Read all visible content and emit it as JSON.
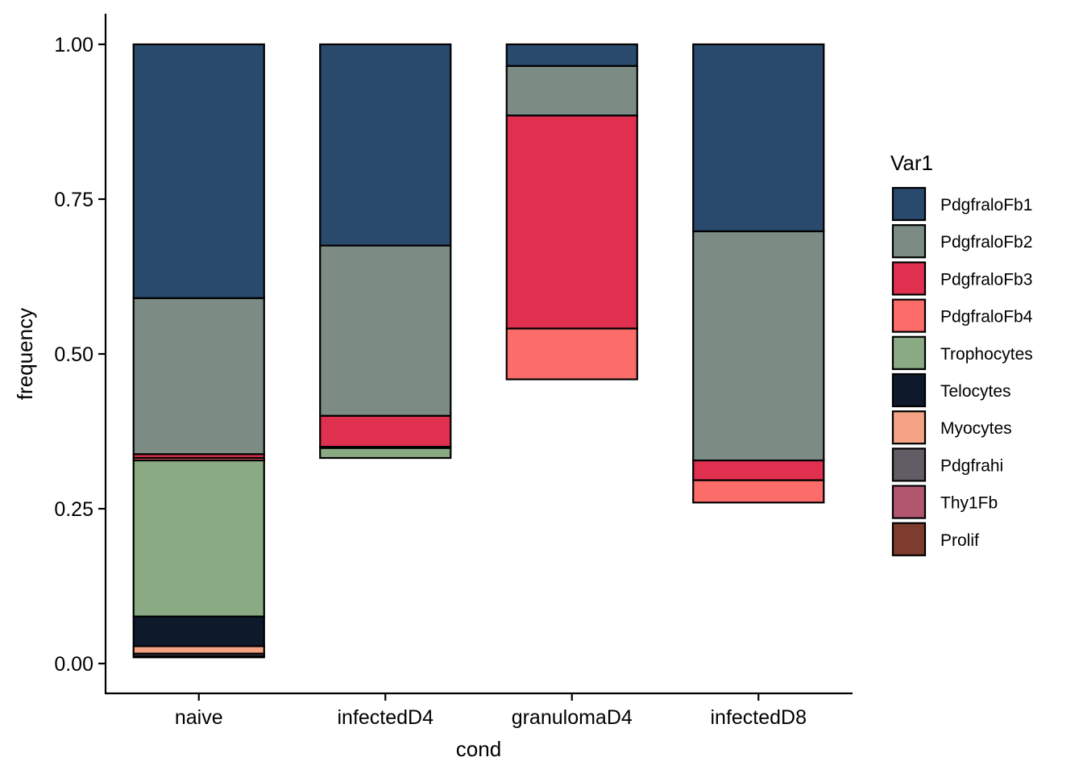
{
  "chart_data": {
    "type": "bar",
    "stacked": true,
    "xlabel": "cond",
    "ylabel": "frequency",
    "ylim": [
      0,
      1
    ],
    "y_ticks": [
      "0.00",
      "0.25",
      "0.50",
      "0.75",
      "1.00"
    ],
    "y_tick_values": [
      0,
      0.25,
      0.5,
      0.75,
      1.0
    ],
    "categories": [
      "naive",
      "infectedD4",
      "granulomaD4",
      "infectedD8"
    ],
    "legend": {
      "title": "Var1",
      "placement": "right"
    },
    "series": [
      {
        "name": "PdgfraloFb1",
        "color": "#2A4A6D",
        "values": [
          0.41,
          0.325,
          0.035,
          0.302
        ]
      },
      {
        "name": "PdgfraloFb2",
        "color": "#7C8C84",
        "values": [
          0.252,
          0.275,
          0.08,
          0.37
        ]
      },
      {
        "name": "PdgfraloFb3",
        "color": "#E0304F",
        "values": [
          0.006,
          0.05,
          0.344,
          0.032
        ]
      },
      {
        "name": "PdgfraloFb4",
        "color": "#FC6C69",
        "values": [
          0.004,
          0.002,
          0.082,
          0.036
        ]
      },
      {
        "name": "Trophocytes",
        "color": "#8AAA84",
        "values": [
          0.252,
          0.016,
          0.0,
          0.0
        ]
      },
      {
        "name": "Telocytes",
        "color": "#0E192B",
        "values": [
          0.048,
          0.0,
          0.0,
          0.0
        ]
      },
      {
        "name": "Myocytes",
        "color": "#F4A384",
        "values": [
          0.012,
          0.0,
          0.0,
          0.0
        ]
      },
      {
        "name": "Pdgfrahi",
        "color": "#625C65",
        "values": [
          0.004,
          0.0,
          0.0,
          0.0
        ]
      },
      {
        "name": "Thy1Fb",
        "color": "#B1566E",
        "values": [
          0.0,
          0.0,
          0.0,
          0.0
        ]
      },
      {
        "name": "Prolif",
        "color": "#7D3C2D",
        "values": [
          0.002,
          0.0,
          0.0,
          0.0
        ]
      }
    ]
  }
}
